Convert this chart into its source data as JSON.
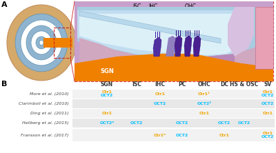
{
  "panel_a_label": "A",
  "panel_b_label": "B",
  "columns": [
    "SGN",
    "ISC",
    "IHC",
    "PC",
    "OHC",
    "DC",
    "HS & OSC",
    "SV"
  ],
  "rows": [
    "More et al. (2010)",
    "Clarimboli et al. (2010)",
    "Ding et al. (2011)",
    "Hellberg et al. (2015)",
    "Fransson et al. (2017)"
  ],
  "cells": [
    [
      [
        "Ctr1\nOCT2",
        "both"
      ],
      [
        "",
        ""
      ],
      [
        "Ctr1",
        "orange"
      ],
      [
        "",
        ""
      ],
      [
        "Ctr1¹",
        "orange"
      ],
      [
        "",
        ""
      ],
      [
        "",
        ""
      ],
      [
        "Ctr1\nOCT2",
        "both"
      ]
    ],
    [
      [
        "",
        ""
      ],
      [
        "",
        ""
      ],
      [
        "OCT2",
        "blue"
      ],
      [
        "",
        ""
      ],
      [
        "OCT2²",
        "blue"
      ],
      [
        "",
        ""
      ],
      [
        "",
        ""
      ],
      [
        "OCT2",
        "blue"
      ]
    ],
    [
      [
        "Ctr1",
        "orange"
      ],
      [
        "",
        ""
      ],
      [
        "",
        ""
      ],
      [
        "",
        ""
      ],
      [
        "Ctr1",
        "orange"
      ],
      [
        "",
        ""
      ],
      [
        "",
        ""
      ],
      [
        "Ctr1",
        "orange"
      ]
    ],
    [
      [
        "OCT2ᵃ",
        "blue"
      ],
      [
        "OCT2",
        "blue"
      ],
      [
        "",
        ""
      ],
      [
        "OCT2",
        "blue"
      ],
      [
        "",
        ""
      ],
      [
        "OCT2",
        "blue"
      ],
      [
        "OCT2",
        "blue"
      ],
      [
        "",
        ""
      ]
    ],
    [
      [
        "",
        ""
      ],
      [
        "",
        ""
      ],
      [
        "Ctr1ᵃ",
        "orange"
      ],
      [
        "OCT2",
        "blue"
      ],
      [
        "",
        ""
      ],
      [
        "Ctr1",
        "orange"
      ],
      [
        "",
        ""
      ],
      [
        "Ctr1\nOCT2",
        "both"
      ]
    ]
  ],
  "orange_color": "#F0A500",
  "blue_color": "#00BFFF",
  "header_color": "#333333",
  "row_label_color": "#444444",
  "bg_color": "#F2F2F2",
  "alt_bg_color": "#E8E8E8",
  "fig_bg": "#FFFFFF",
  "cochlea_tan": "#D4A96A",
  "cochlea_tan_dark": "#C49060",
  "cochlea_blue": "#8FB4D0",
  "cochlea_white": "#FFFFFF",
  "sgn_orange": "#F08000",
  "right_bg_pink": "#F5D0D8",
  "right_outer_purple": "#C8A0CC",
  "right_blue1": "#90C0D8",
  "right_blue2": "#B8D8E8",
  "right_blue3": "#D0ECF8",
  "right_sv_pink": "#E8A0B0",
  "right_sv_outer": "#D080A0",
  "hair_purple": "#5A3080",
  "hair_purple2": "#7A50A0"
}
